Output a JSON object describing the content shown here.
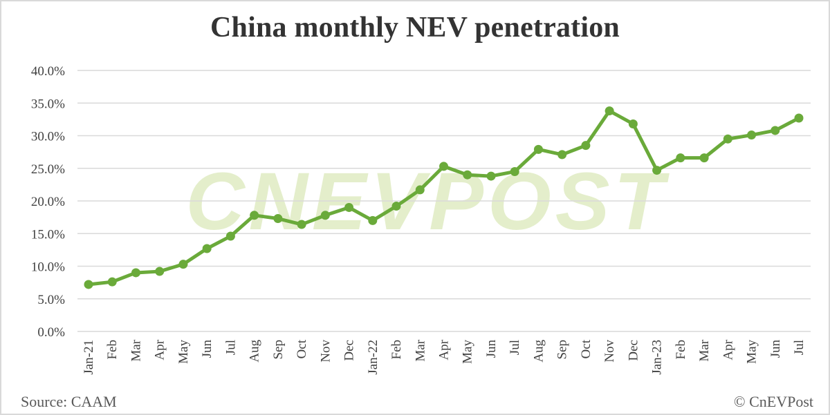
{
  "title": "China monthly NEV penetration",
  "footer": {
    "source": "Source: CAAM",
    "copyright": "© CnEVPost"
  },
  "watermark": "CNEVPOST",
  "colors": {
    "line": "#6aaa3a",
    "grid": "#d9d9d9",
    "watermark": "#e4eecb",
    "text": "#404040",
    "title": "#333333"
  },
  "chart_data": {
    "type": "line",
    "title": "China monthly NEV penetration",
    "xlabel": "",
    "ylabel": "",
    "ylim": [
      0,
      40
    ],
    "yticks": [
      "0.0%",
      "5.0%",
      "10.0%",
      "15.0%",
      "20.0%",
      "25.0%",
      "30.0%",
      "35.0%",
      "40.0%"
    ],
    "grid": true,
    "legend": null,
    "categories": [
      "Jan-21",
      "Feb",
      "Mar",
      "Apr",
      "May",
      "Jun",
      "Jul",
      "Aug",
      "Sep",
      "Oct",
      "Nov",
      "Dec",
      "Jan-22",
      "Feb",
      "Mar",
      "Apr",
      "May",
      "Jun",
      "Jul",
      "Aug",
      "Sep",
      "Oct",
      "Nov",
      "Dec",
      "Jan-23",
      "Feb",
      "Mar",
      "Apr",
      "May",
      "Jun",
      "Jul"
    ],
    "series": [
      {
        "name": "NEV penetration",
        "values": [
          7.2,
          7.6,
          9.0,
          9.2,
          10.3,
          12.7,
          14.6,
          17.8,
          17.3,
          16.4,
          17.8,
          19.0,
          17.0,
          19.2,
          21.7,
          25.3,
          24.0,
          23.8,
          24.5,
          27.9,
          27.1,
          28.5,
          33.8,
          31.8,
          24.7,
          26.6,
          26.6,
          29.5,
          30.1,
          30.8,
          32.7
        ]
      }
    ],
    "annotations": [
      "Source: CAAM",
      "© CnEVPost"
    ]
  }
}
